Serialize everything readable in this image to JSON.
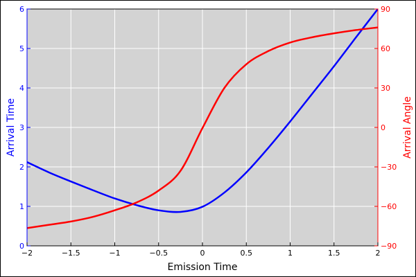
{
  "chart_data": {
    "type": "line",
    "xlabel": "Emission Time",
    "ylabel_left": "Arrival Time",
    "ylabel_right": "Arrival Angle",
    "xlim": [
      -2,
      2
    ],
    "ylim_left": [
      0,
      6
    ],
    "ylim_right": [
      -90,
      90
    ],
    "x_ticks": [
      -2,
      -1.5,
      -1,
      -0.5,
      0,
      0.5,
      1,
      1.5,
      2
    ],
    "x_tick_labels": [
      "−2",
      "−1.5",
      "−1",
      "−0.5",
      "0",
      "0.5",
      "1",
      "1.5",
      "2"
    ],
    "y_left_ticks": [
      0,
      1,
      2,
      3,
      4,
      5,
      6
    ],
    "y_left_tick_labels": [
      "0",
      "1",
      "2",
      "3",
      "4",
      "5",
      "6"
    ],
    "y_right_ticks": [
      -90,
      -60,
      -30,
      0,
      30,
      60,
      90
    ],
    "y_right_tick_labels": [
      "−90",
      "−60",
      "−30",
      "0",
      "30",
      "60",
      "90"
    ],
    "grid": true,
    "plot_background": "#d3d3d3",
    "series": [
      {
        "axis": "left",
        "color": "#0000ff",
        "x": [
          -2,
          -1.75,
          -1.5,
          -1.25,
          -1,
          -0.75,
          -0.5,
          -0.25,
          0,
          0.25,
          0.5,
          0.75,
          1,
          1.25,
          1.5,
          1.75,
          2
        ],
        "y": [
          2.12,
          1.86,
          1.63,
          1.41,
          1.2,
          1.03,
          0.9,
          0.86,
          0.99,
          1.35,
          1.86,
          2.48,
          3.15,
          3.85,
          4.55,
          5.28,
          6.0
        ]
      },
      {
        "axis": "right",
        "color": "#ff0000",
        "x": [
          -2,
          -1.75,
          -1.5,
          -1.25,
          -1,
          -0.75,
          -0.5,
          -0.25,
          0,
          0.25,
          0.5,
          0.75,
          1,
          1.25,
          1.5,
          1.75,
          2
        ],
        "y": [
          -76.5,
          -74.0,
          -71.5,
          -68.0,
          -63.0,
          -57.0,
          -48.0,
          -33.0,
          -0.5,
          30.0,
          48.0,
          58.0,
          64.5,
          68.5,
          71.5,
          74.0,
          76.0
        ]
      }
    ]
  },
  "colors": {
    "left_axis": "#0000ff",
    "right_axis": "#ff0000",
    "grid": "#ffffff",
    "frame": "#000000"
  }
}
